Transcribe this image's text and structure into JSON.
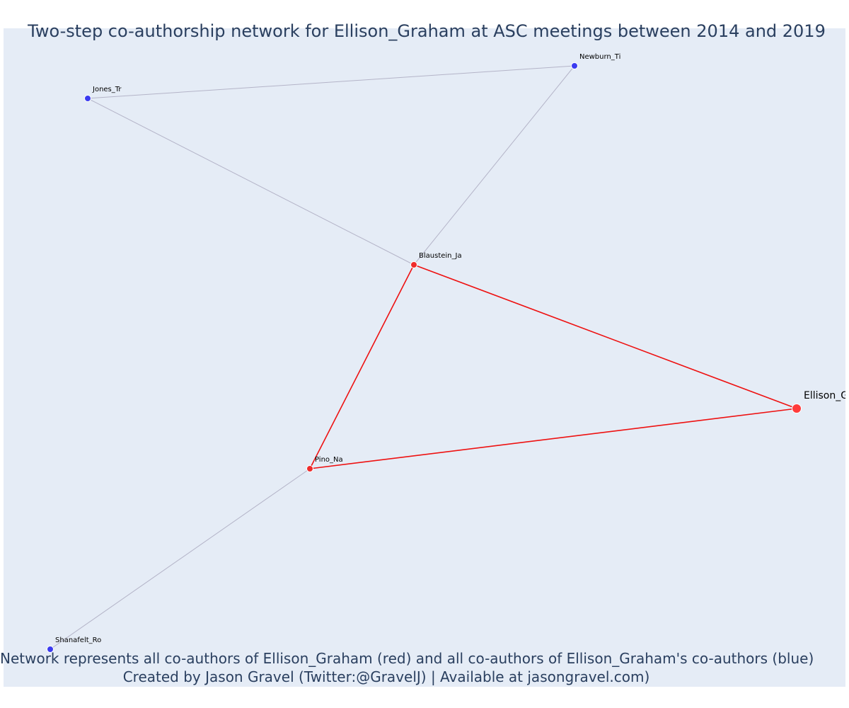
{
  "chart": {
    "title": "Two-step co-authorship network for Ellison_Graham at ASC meetings between 2014 and 2019",
    "caption_line_1": "Network represents all co-authors of Ellison_Graham (red) and all co-authors of Ellison_Graham's co-authors (blue)",
    "caption_line_2": "Created by Jason Gravel (Twitter:@GravelJ) | Available at jasongravel.com)"
  },
  "colors": {
    "plot_background": "#e5ecf6",
    "ego_node": "#ff3b3b",
    "coauthor_node": "#ef2b2b",
    "second_degree_node": "#3b3bf0",
    "ego_edge": "#ee1111",
    "second_degree_edge": "#b4b4c8",
    "title_text": "#2a3f5f"
  },
  "chart_data": {
    "type": "network",
    "nodes": [
      {
        "id": "Ellison_Graham",
        "label": "Ellison_G",
        "group": "ego"
      },
      {
        "id": "Blaustein_Ja",
        "label": "Blaustein_Ja",
        "group": "coauthor"
      },
      {
        "id": "Pino_Na",
        "label": "Pino_Na",
        "group": "coauthor"
      },
      {
        "id": "Newburn_Ti",
        "label": "Newburn_Ti",
        "group": "second_degree"
      },
      {
        "id": "Jones_Tr",
        "label": "Jones_Tr",
        "group": "second_degree"
      },
      {
        "id": "Shanafelt_Ro",
        "label": "Shanafelt_Ro",
        "group": "second_degree"
      }
    ],
    "edges": [
      {
        "source": "Ellison_Graham",
        "target": "Blaustein_Ja",
        "group": "ego"
      },
      {
        "source": "Ellison_Graham",
        "target": "Pino_Na",
        "group": "ego"
      },
      {
        "source": "Blaustein_Ja",
        "target": "Pino_Na",
        "group": "ego"
      },
      {
        "source": "Blaustein_Ja",
        "target": "Newburn_Ti",
        "group": "second_degree"
      },
      {
        "source": "Blaustein_Ja",
        "target": "Jones_Tr",
        "group": "second_degree"
      },
      {
        "source": "Jones_Tr",
        "target": "Newburn_Ti",
        "group": "second_degree"
      },
      {
        "source": "Pino_Na",
        "target": "Shanafelt_Ro",
        "group": "second_degree"
      }
    ]
  }
}
